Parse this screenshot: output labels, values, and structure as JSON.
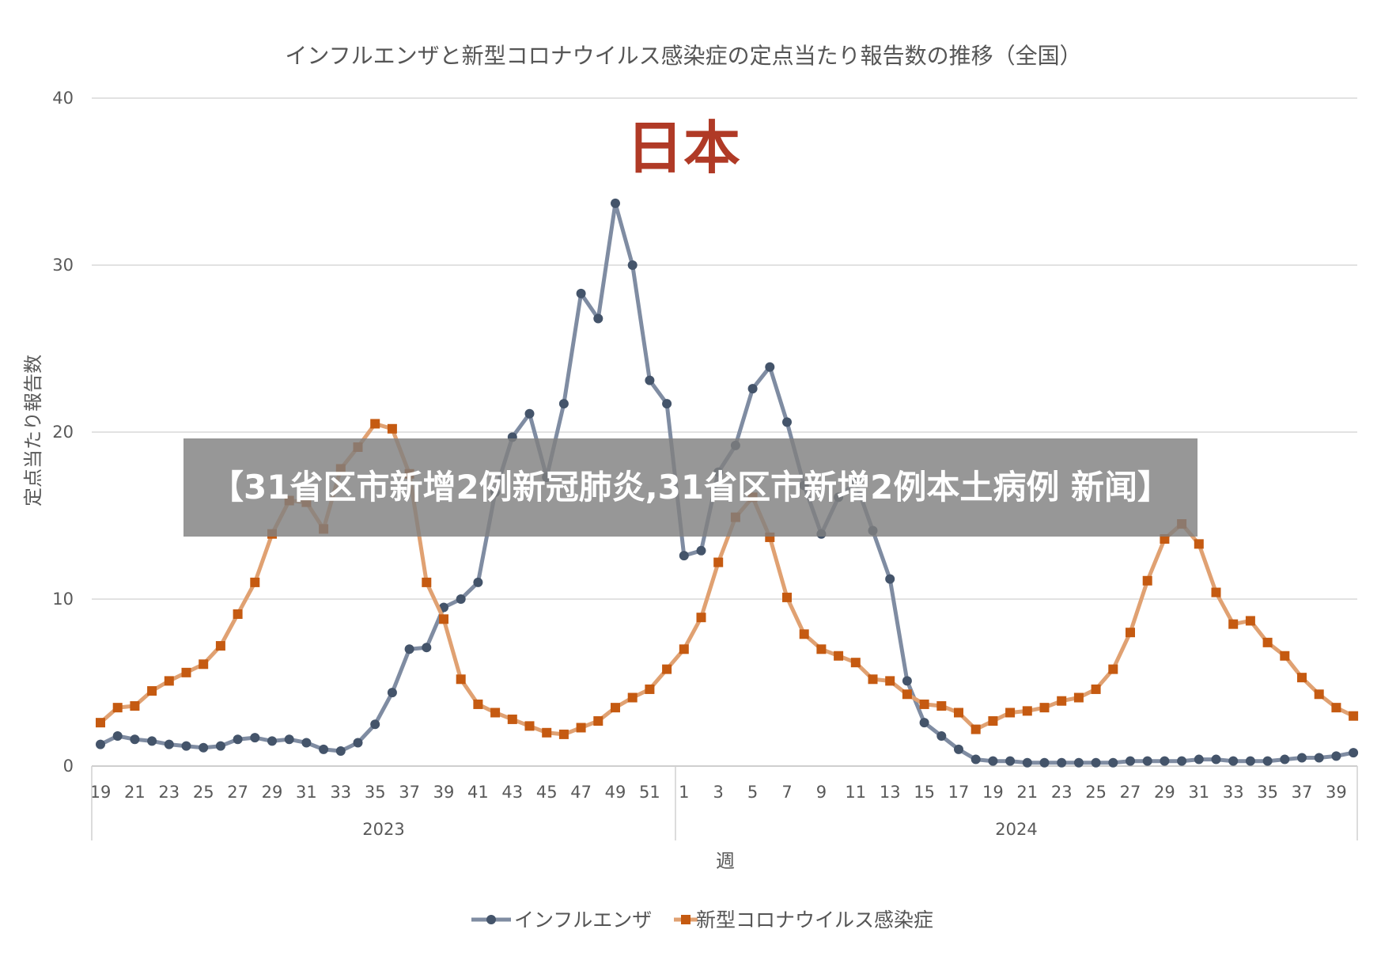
{
  "overlay": {
    "headline": "【31省区市新增2例新冠肺炎,31省区市新增2例本土病例 新闻】"
  },
  "chart_data": {
    "type": "line",
    "title": "インフルエンザと新型コロナウイルス感染症の定点当たり報告数の推移（全国）",
    "annotation": "日本",
    "xlabel": "週",
    "ylabel": "定点当たり報告数",
    "ylim": [
      0,
      40
    ],
    "yticks": [
      0,
      10,
      20,
      30,
      40
    ],
    "grid": true,
    "legend_position": "bottom",
    "year_groups": [
      {
        "label": "2023",
        "weeks": "19-52"
      },
      {
        "label": "2024",
        "weeks": "1-40"
      }
    ],
    "x": [
      "2023-19",
      "2023-20",
      "2023-21",
      "2023-22",
      "2023-23",
      "2023-24",
      "2023-25",
      "2023-26",
      "2023-27",
      "2023-28",
      "2023-29",
      "2023-30",
      "2023-31",
      "2023-32",
      "2023-33",
      "2023-34",
      "2023-35",
      "2023-36",
      "2023-37",
      "2023-38",
      "2023-39",
      "2023-40",
      "2023-41",
      "2023-42",
      "2023-43",
      "2023-44",
      "2023-45",
      "2023-46",
      "2023-47",
      "2023-48",
      "2023-49",
      "2023-50",
      "2023-51",
      "2023-52",
      "2024-1",
      "2024-2",
      "2024-3",
      "2024-4",
      "2024-5",
      "2024-6",
      "2024-7",
      "2024-8",
      "2024-9",
      "2024-10",
      "2024-11",
      "2024-12",
      "2024-13",
      "2024-14",
      "2024-15",
      "2024-16",
      "2024-17",
      "2024-18",
      "2024-19",
      "2024-20",
      "2024-21",
      "2024-22",
      "2024-23",
      "2024-24",
      "2024-25",
      "2024-26",
      "2024-27",
      "2024-28",
      "2024-29",
      "2024-30",
      "2024-31",
      "2024-32",
      "2024-33",
      "2024-34",
      "2024-35",
      "2024-36",
      "2024-37",
      "2024-38",
      "2024-39",
      "2024-40"
    ],
    "tick_labels": [
      "19",
      "21",
      "23",
      "25",
      "27",
      "29",
      "31",
      "33",
      "35",
      "37",
      "39",
      "41",
      "43",
      "45",
      "47",
      "49",
      "51",
      "1",
      "3",
      "5",
      "7",
      "9",
      "11",
      "13",
      "15",
      "17",
      "19",
      "21",
      "23",
      "25",
      "27",
      "29",
      "31",
      "33",
      "35",
      "37",
      "39"
    ],
    "series": [
      {
        "name": "インフルエンザ",
        "color": "#7f8ca2",
        "marker": "circle",
        "values": [
          1.3,
          1.8,
          1.6,
          1.5,
          1.3,
          1.2,
          1.1,
          1.2,
          1.6,
          1.7,
          1.5,
          1.6,
          1.4,
          1.0,
          0.9,
          1.4,
          2.5,
          4.4,
          7.0,
          7.1,
          9.5,
          10.0,
          11.0,
          16.4,
          19.7,
          21.1,
          17.3,
          21.7,
          28.3,
          26.8,
          33.7,
          30.0,
          23.1,
          21.7,
          12.6,
          12.9,
          17.6,
          19.2,
          22.6,
          23.9,
          20.6,
          16.8,
          13.9,
          16.1,
          17.0,
          14.1,
          11.2,
          5.1,
          2.6,
          1.8,
          1.0,
          0.4,
          0.3,
          0.3,
          0.2,
          0.2,
          0.2,
          0.2,
          0.2,
          0.2,
          0.3,
          0.3,
          0.3,
          0.3,
          0.4,
          0.4,
          0.3,
          0.3,
          0.3,
          0.4,
          0.5,
          0.5,
          0.6,
          0.8
        ]
      },
      {
        "name": "新型コロナウイルス感染症",
        "color": "#e0a172",
        "marker": "square",
        "values": [
          2.6,
          3.5,
          3.6,
          4.5,
          5.1,
          5.6,
          6.1,
          7.2,
          9.1,
          11.0,
          13.9,
          15.9,
          15.8,
          14.2,
          17.8,
          19.1,
          20.5,
          20.2,
          17.5,
          11.0,
          8.8,
          5.2,
          3.7,
          3.2,
          2.8,
          2.4,
          2.0,
          1.9,
          2.3,
          2.7,
          3.5,
          4.1,
          4.6,
          5.8,
          7.0,
          8.9,
          12.2,
          14.9,
          16.1,
          13.7,
          10.1,
          7.9,
          7.0,
          6.6,
          6.2,
          5.2,
          5.1,
          4.3,
          3.7,
          3.6,
          3.2,
          2.2,
          2.7,
          3.2,
          3.3,
          3.5,
          3.9,
          4.1,
          4.6,
          5.8,
          8.0,
          11.1,
          13.6,
          14.5,
          13.3,
          10.4,
          8.5,
          8.7,
          7.4,
          6.6,
          5.3,
          4.3,
          3.5,
          3.0
        ]
      }
    ]
  }
}
